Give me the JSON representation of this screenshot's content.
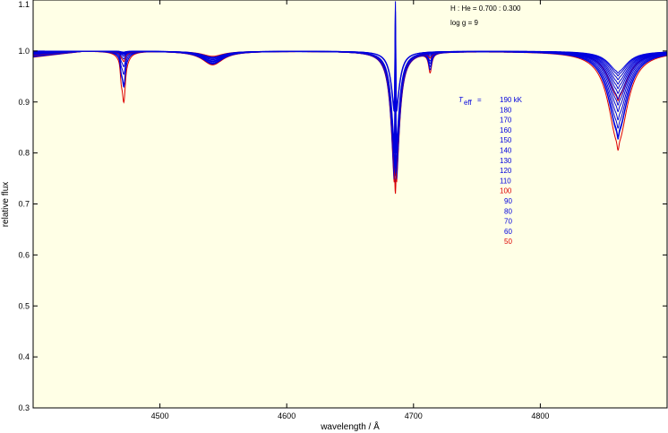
{
  "chart_data": {
    "type": "line",
    "title": "",
    "xlabel": "wavelength / Å",
    "ylabel": "relative flux",
    "xlim": [
      4400,
      4900
    ],
    "ylim": [
      0.3,
      1.1
    ],
    "xticks": [
      4500,
      4600,
      4700,
      4800
    ],
    "yticks": [
      0.3,
      0.4,
      0.5,
      0.6,
      0.7,
      0.8,
      0.9,
      1.0,
      1.1
    ],
    "xtick_labels": [
      "4500",
      "4600",
      "4700",
      "4800"
    ],
    "ytick_labels": [
      "0.3",
      "0.4",
      "0.5",
      "0.6",
      "0.7",
      "0.8",
      "0.9",
      "1.0",
      "1.1"
    ],
    "grid": false,
    "background_color": "#ffffe6",
    "annotations": {
      "composition": "H : He = 0.700 : 0.300",
      "logg": "log g   = 9",
      "teff_symbol": "T",
      "teff_subscript": "eff",
      "teff_equals": "=",
      "teff_unit": "kK"
    },
    "lines": {
      "HeI_4471": 4471.5,
      "HeII_4542": 4541.6,
      "HeII_4686": 4685.7,
      "HeI_4713": 4713.1,
      "Hbeta_4861": 4861.3
    },
    "series": [
      {
        "teff_label": "190 kK",
        "teff": 190,
        "color": "#0000dd",
        "depth_4471": 0.002,
        "depth_4542": 0.012,
        "core_4686": 1.1,
        "depth_4713": 0.0,
        "depth_4861": 0.04
      },
      {
        "teff_label": "180",
        "teff": 180,
        "color": "#0000dd",
        "depth_4471": 0.002,
        "depth_4542": 0.013,
        "core_4686": 1.08,
        "depth_4713": 0.0,
        "depth_4861": 0.045
      },
      {
        "teff_label": "170",
        "teff": 170,
        "color": "#0000dd",
        "depth_4471": 0.003,
        "depth_4542": 0.014,
        "core_4686": 1.05,
        "depth_4713": 0.0,
        "depth_4861": 0.052
      },
      {
        "teff_label": "160",
        "teff": 160,
        "color": "#0000dd",
        "depth_4471": 0.003,
        "depth_4542": 0.016,
        "core_4686": 1.0,
        "depth_4713": 0.0,
        "depth_4861": 0.06
      },
      {
        "teff_label": "150",
        "teff": 150,
        "color": "#0000dd",
        "depth_4471": 0.004,
        "depth_4542": 0.017,
        "core_4686": 0.95,
        "depth_4713": 0.0,
        "depth_4861": 0.068
      },
      {
        "teff_label": "140",
        "teff": 140,
        "color": "#0000dd",
        "depth_4471": 0.005,
        "depth_4542": 0.019,
        "core_4686": 0.9,
        "depth_4713": 0.001,
        "depth_4861": 0.077
      },
      {
        "teff_label": "130",
        "teff": 130,
        "color": "#0000dd",
        "depth_4471": 0.007,
        "depth_4542": 0.021,
        "core_4686": 0.85,
        "depth_4713": 0.002,
        "depth_4861": 0.087
      },
      {
        "teff_label": "120",
        "teff": 120,
        "color": "#0000dd",
        "depth_4471": 0.01,
        "depth_4542": 0.023,
        "core_4686": 0.8,
        "depth_4713": 0.004,
        "depth_4861": 0.098
      },
      {
        "teff_label": "110",
        "teff": 110,
        "color": "#0000dd",
        "depth_4471": 0.015,
        "depth_4542": 0.025,
        "core_4686": 0.76,
        "depth_4713": 0.007,
        "depth_4861": 0.11
      },
      {
        "teff_label": "100",
        "teff": 100,
        "color": "#dd0000",
        "depth_4471": 0.02,
        "depth_4542": 0.027,
        "core_4686": 0.72,
        "depth_4713": 0.01,
        "depth_4861": 0.09
      },
      {
        "teff_label": "90",
        "teff": 90,
        "color": "#0000dd",
        "depth_4471": 0.03,
        "depth_4542": 0.026,
        "core_4686": 0.74,
        "depth_4713": 0.015,
        "depth_4861": 0.125
      },
      {
        "teff_label": "80",
        "teff": 80,
        "color": "#0000dd",
        "depth_4471": 0.045,
        "depth_4542": 0.024,
        "core_4686": 0.76,
        "depth_4713": 0.02,
        "depth_4861": 0.14
      },
      {
        "teff_label": "70",
        "teff": 70,
        "color": "#0000dd",
        "depth_4471": 0.065,
        "depth_4542": 0.02,
        "core_4686": 0.79,
        "depth_4713": 0.026,
        "depth_4861": 0.155
      },
      {
        "teff_label": "60",
        "teff": 60,
        "color": "#0000dd",
        "depth_4471": 0.07,
        "depth_4542": 0.016,
        "core_4686": 0.83,
        "depth_4713": 0.032,
        "depth_4861": 0.16
      },
      {
        "teff_label": "50",
        "teff": 50,
        "color": "#dd0000",
        "depth_4471": 0.1,
        "depth_4542": 0.01,
        "core_4686": 0.88,
        "depth_4713": 0.038,
        "depth_4861": 0.18
      }
    ]
  }
}
